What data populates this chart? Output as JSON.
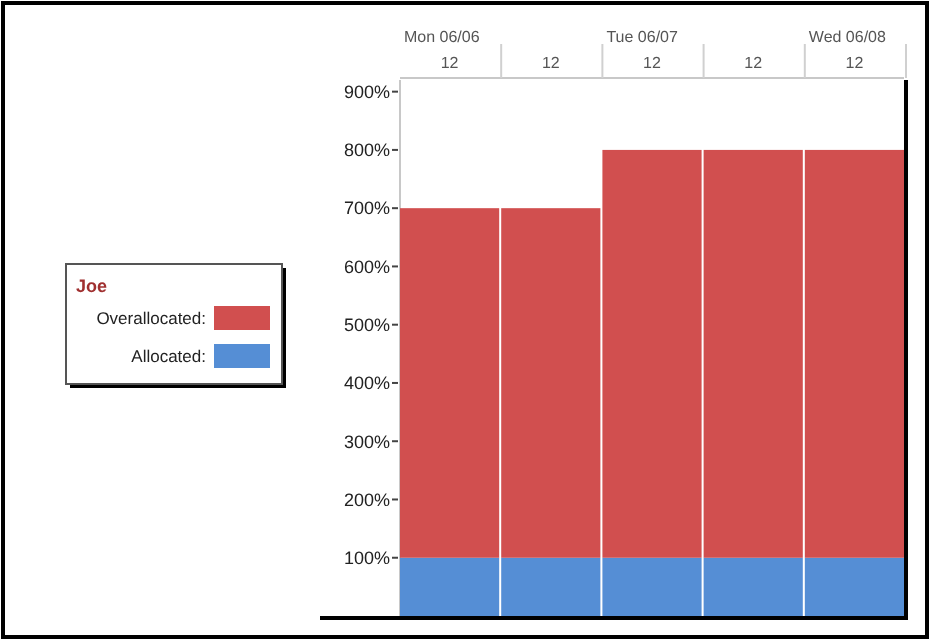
{
  "chart_data": {
    "type": "bar",
    "stacked": true,
    "legend": "left",
    "legend_title": "Joe",
    "categories": [
      "12",
      "12",
      "12",
      "12",
      "12"
    ],
    "series": [
      {
        "name": "Allocated:",
        "color": "#558ed5",
        "values": [
          100,
          100,
          100,
          100,
          100
        ]
      },
      {
        "name": "Overallocated:",
        "color": "#d14f4f",
        "values": [
          600,
          600,
          700,
          700,
          700
        ]
      }
    ],
    "ylim": [
      0,
      920
    ],
    "yticks": [
      {
        "value": 100,
        "label": "100%"
      },
      {
        "value": 200,
        "label": "200%"
      },
      {
        "value": 300,
        "label": "300%"
      },
      {
        "value": 400,
        "label": "400%"
      },
      {
        "value": 500,
        "label": "500%"
      },
      {
        "value": 600,
        "label": "600%"
      },
      {
        "value": 700,
        "label": "700%"
      },
      {
        "value": 800,
        "label": "800%"
      },
      {
        "value": 900,
        "label": "900%"
      }
    ],
    "annotations": [
      "Mon 06/06",
      "Tue 06/07",
      "Wed 06/08"
    ]
  }
}
